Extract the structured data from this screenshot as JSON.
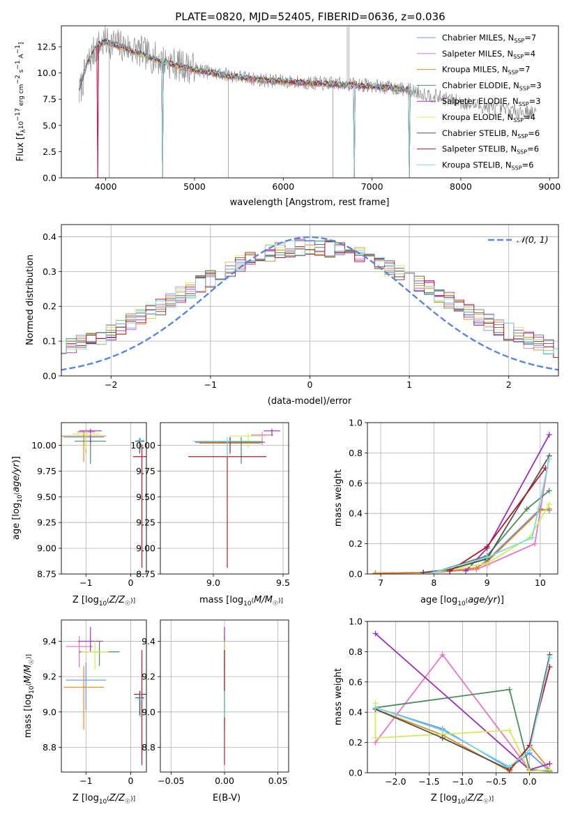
{
  "figure_title": "PLATE=0820, MJD=52405, FIBERID=0636, z=0.036",
  "models": [
    {
      "name": "Chabrier MILES",
      "nssp": "7",
      "color": "#6495ED"
    },
    {
      "name": "Salpeter MILES",
      "nssp": "4",
      "color": "#E377C2"
    },
    {
      "name": "Kroupa MILES",
      "nssp": "7",
      "color": "#E08A1E"
    },
    {
      "name": "Chabrier ELODIE",
      "nssp": "3",
      "color": "#4E8B5F"
    },
    {
      "name": "Salpeter ELODIE",
      "nssp": "3",
      "color": "#9A2FB5"
    },
    {
      "name": "Kroupa ELODIE",
      "nssp": "4",
      "color": "#D4EA5A"
    },
    {
      "name": "Chabrier STELIB",
      "nssp": "6",
      "color": "#505050"
    },
    {
      "name": "Salpeter STELIB",
      "nssp": "6",
      "color": "#B2182B"
    },
    {
      "name": "Kroupa STELIB",
      "nssp": "6",
      "color": "#7FD9DF"
    }
  ],
  "chart_data": [
    {
      "id": "spectrum",
      "type": "line",
      "title": "PLATE=0820, MJD=52405, FIBERID=0636, z=0.036",
      "xlabel": "wavelength [Angstrom, rest frame]",
      "ylabel": "Flux [f_λ 10^-17 erg cm^-2 s^-1 A^-1]",
      "xlim": [
        3500,
        9100
      ],
      "ylim": [
        0,
        14.5
      ],
      "xticks": [
        4000,
        5000,
        6000,
        7000,
        8000,
        9000
      ],
      "yticks": [
        0.0,
        2.5,
        5.0,
        7.5,
        10.0,
        12.5
      ],
      "data_series": {
        "name": "data",
        "color": "#888888",
        "x": [
          3700,
          3800,
          3900,
          4000,
          4100,
          4200,
          4300,
          4400,
          4500,
          4600,
          4800,
          5000,
          5200,
          5400,
          5600,
          5800,
          6000,
          6200,
          6400,
          6600,
          6800,
          7000,
          7200,
          7400,
          7600,
          7800,
          8000,
          8200,
          8400,
          8600,
          8800
        ],
        "y": [
          8.0,
          11.0,
          12.5,
          13.0,
          12.8,
          12.5,
          12.3,
          12.0,
          11.6,
          11.3,
          10.8,
          10.4,
          10.0,
          9.8,
          9.5,
          9.3,
          9.2,
          9.1,
          9.0,
          9.0,
          8.9,
          8.8,
          8.6,
          8.4,
          8.0,
          7.6,
          7.2,
          6.9,
          6.6,
          6.4,
          6.2
        ]
      },
      "model_continuum": {
        "x": [
          3700,
          3800,
          3900,
          4000,
          4100,
          4200,
          4300,
          4400,
          4500,
          4600,
          4800,
          5000,
          5200,
          5400,
          5600,
          5800,
          6000,
          6200,
          6400,
          6600,
          6800,
          7000,
          7200,
          7400
        ],
        "y": [
          8.5,
          11.2,
          12.6,
          13.0,
          12.7,
          12.4,
          12.1,
          11.8,
          11.5,
          11.2,
          10.7,
          10.3,
          10.0,
          9.7,
          9.5,
          9.3,
          9.2,
          9.1,
          9.0,
          8.9,
          8.8,
          8.7,
          8.6,
          8.4
        ]
      },
      "legend_position": "top-right"
    },
    {
      "id": "residuals",
      "type": "line",
      "xlabel": "(data-model)/error",
      "ylabel": "Normed distribution",
      "xlim": [
        -2.5,
        2.5
      ],
      "ylim": [
        0,
        0.435
      ],
      "xticks": [
        -2,
        -1,
        0,
        1,
        2
      ],
      "yticks": [
        0.0,
        0.1,
        0.2,
        0.3,
        0.4
      ],
      "bin_width": 0.1,
      "gaussian_label": "𝒩(0, 1)",
      "gaussian_color": "#5B85D9",
      "legend_position": "top-right",
      "grid": true
    },
    {
      "id": "age-vs-z",
      "type": "scatter",
      "xlabel": "Z [log10(Z/Z☉)]",
      "ylabel": "age  [log10(age/yr)]",
      "xlim": [
        -1.55,
        0.35
      ],
      "ylim": [
        8.75,
        10.22
      ],
      "xticks": [
        -1,
        0
      ],
      "yticks": [
        8.75,
        9.0,
        9.25,
        9.5,
        9.75,
        10.0
      ],
      "points": [
        {
          "x": -1.05,
          "y": 10.08,
          "xerr": 0.45,
          "yerr": [
            0.08,
            0.04
          ]
        },
        {
          "x": -1.0,
          "y": 10.13,
          "xerr": 0.2,
          "yerr": [
            0.2,
            0.03
          ]
        },
        {
          "x": -1.05,
          "y": 10.09,
          "xerr": 0.5,
          "yerr": [
            0.25,
            0.04
          ]
        },
        {
          "x": -0.9,
          "y": 10.04,
          "xerr": 0.35,
          "yerr": [
            0.22,
            0.03
          ]
        },
        {
          "x": -0.9,
          "y": 10.14,
          "xerr": 0.25,
          "yerr": [
            0.12,
            0.02
          ]
        },
        {
          "x": -1.0,
          "y": 10.11,
          "xerr": 0.3,
          "yerr": [
            0.15,
            0.03
          ]
        },
        {
          "x": 0.2,
          "y": 10.04,
          "xerr": 0.1,
          "yerr": [
            0.12,
            0.03
          ]
        },
        {
          "x": 0.25,
          "y": 9.89,
          "xerr": 0.2,
          "yerr": [
            1.08,
            0.12
          ]
        },
        {
          "x": 0.22,
          "y": 10.05,
          "xerr": 0.08,
          "yerr": [
            0.1,
            0.02
          ]
        }
      ]
    },
    {
      "id": "age-vs-mass",
      "type": "scatter",
      "xlabel": "mass [log10(M/M☉)]",
      "ylabel": "",
      "xlim": [
        8.62,
        9.54
      ],
      "ylim": [
        8.75,
        10.22
      ],
      "xticks": [
        9.0,
        9.5
      ],
      "yticks": [
        8.75,
        9.0,
        9.25,
        9.5,
        9.75,
        10.0
      ],
      "points": [
        {
          "x": 9.12,
          "y": 10.03,
          "xerr": 0.22,
          "yerr": [
            0.12,
            0.05
          ]
        },
        {
          "x": 9.35,
          "y": 10.1,
          "xerr": 0.08,
          "yerr": [
            0.1,
            0.03
          ]
        },
        {
          "x": 9.12,
          "y": 10.02,
          "xerr": 0.22,
          "yerr": [
            0.1,
            0.05
          ]
        },
        {
          "x": 9.2,
          "y": 10.04,
          "xerr": 0.15,
          "yerr": [
            0.22,
            0.04
          ]
        },
        {
          "x": 9.42,
          "y": 10.14,
          "xerr": 0.06,
          "yerr": [
            0.05,
            0.02
          ]
        },
        {
          "x": 9.25,
          "y": 10.09,
          "xerr": 0.13,
          "yerr": [
            0.12,
            0.03
          ]
        },
        {
          "x": 9.12,
          "y": 10.03,
          "xerr": 0.25,
          "yerr": [
            0.1,
            0.05
          ]
        },
        {
          "x": 9.1,
          "y": 9.89,
          "xerr": 0.28,
          "yerr": [
            1.08,
            0.12
          ]
        },
        {
          "x": 9.1,
          "y": 10.04,
          "xerr": 0.25,
          "yerr": [
            0.15,
            0.04
          ]
        }
      ]
    },
    {
      "id": "weight-vs-age",
      "type": "line",
      "xlabel": "age  [log10(age/yr)]",
      "ylabel": "mass weight",
      "xlim": [
        6.75,
        10.33
      ],
      "ylim": [
        0,
        1.0
      ],
      "xticks": [
        7,
        8,
        9,
        10
      ],
      "yticks": [
        0.0,
        0.2,
        0.4,
        0.6,
        0.8,
        1.0
      ],
      "series": [
        {
          "x": [
            6.9,
            7.8,
            8.3,
            8.8,
            9.0,
            10.0,
            10.17
          ],
          "y": [
            0.005,
            0.01,
            0.02,
            0.04,
            0.09,
            0.43,
            0.42
          ]
        },
        {
          "x": [
            6.9,
            8.0,
            8.8,
            9.0,
            9.9,
            10.17
          ],
          "y": [
            0.005,
            0.01,
            0.03,
            0.06,
            0.2,
            0.78
          ]
        },
        {
          "x": [
            6.9,
            7.8,
            8.3,
            8.8,
            9.0,
            10.0,
            10.17
          ],
          "y": [
            0.005,
            0.01,
            0.02,
            0.04,
            0.08,
            0.42,
            0.43
          ]
        },
        {
          "x": [
            8.0,
            9.0,
            9.75,
            10.17
          ],
          "y": [
            0.01,
            0.12,
            0.43,
            0.55
          ]
        },
        {
          "x": [
            8.6,
            9.0,
            10.17
          ],
          "y": [
            0.02,
            0.17,
            0.92
          ]
        },
        {
          "x": [
            8.0,
            9.0,
            9.8,
            10.17
          ],
          "y": [
            0.01,
            0.07,
            0.24,
            0.46
          ]
        },
        {
          "x": [
            7.8,
            8.3,
            9.0,
            10.17
          ],
          "y": [
            0.01,
            0.03,
            0.1,
            0.78
          ]
        },
        {
          "x": [
            8.3,
            9.0,
            10.1
          ],
          "y": [
            0.02,
            0.18,
            0.7
          ]
        },
        {
          "x": [
            8.0,
            9.0,
            9.85,
            10.17
          ],
          "y": [
            0.01,
            0.11,
            0.24,
            0.76
          ]
        }
      ]
    },
    {
      "id": "mass-vs-z",
      "type": "scatter",
      "xlabel": "Z [log10(Z/Z☉)]",
      "ylabel": "mass [log10(M/M☉)]",
      "xlim": [
        -1.55,
        0.35
      ],
      "ylim": [
        8.66,
        9.52
      ],
      "xticks": [
        -1,
        0
      ],
      "yticks": [
        8.8,
        9.0,
        9.2,
        9.4
      ],
      "points": [
        {
          "x": -1.0,
          "y": 9.18,
          "xerr": 0.45,
          "yerr": [
            0.17,
            0.1
          ]
        },
        {
          "x": -1.15,
          "y": 9.37,
          "xerr": 0.3,
          "yerr": [
            0.12,
            0.06
          ]
        },
        {
          "x": -1.05,
          "y": 9.14,
          "xerr": 0.45,
          "yerr": [
            0.24,
            0.12
          ]
        },
        {
          "x": -0.7,
          "y": 9.34,
          "xerr": 0.45,
          "yerr": [
            0.08,
            0.06
          ]
        },
        {
          "x": -0.9,
          "y": 9.4,
          "xerr": 0.28,
          "yerr": [
            0.06,
            0.08
          ]
        },
        {
          "x": -0.8,
          "y": 9.34,
          "xerr": 0.3,
          "yerr": [
            0.1,
            0.06
          ]
        },
        {
          "x": 0.2,
          "y": 9.08,
          "xerr": 0.1,
          "yerr": [
            0.1,
            0.04
          ]
        },
        {
          "x": 0.25,
          "y": 9.1,
          "xerr": 0.18,
          "yerr": [
            0.4,
            0.25
          ]
        },
        {
          "x": 0.22,
          "y": 9.07,
          "xerr": 0.08,
          "yerr": [
            0.1,
            0.05
          ]
        }
      ]
    },
    {
      "id": "mass-vs-ebv",
      "type": "scatter",
      "xlabel": "E(B-V)",
      "ylabel": "",
      "xlim": [
        -0.06,
        0.06
      ],
      "ylim": [
        8.66,
        9.52
      ],
      "xticks": [
        -0.05,
        0.0,
        0.05
      ],
      "yticks": [
        8.8,
        9.0,
        9.2,
        9.4
      ],
      "points": [
        {
          "x": 0.0,
          "y": 9.18,
          "yerr": [
            0.17,
            0.1
          ]
        },
        {
          "x": 0.0,
          "y": 9.37,
          "yerr": [
            0.12,
            0.06
          ]
        },
        {
          "x": 0.0,
          "y": 9.14,
          "yerr": [
            0.24,
            0.12
          ]
        },
        {
          "x": 0.0,
          "y": 9.34,
          "yerr": [
            0.08,
            0.06
          ]
        },
        {
          "x": 0.0,
          "y": 9.4,
          "yerr": [
            0.06,
            0.08
          ]
        },
        {
          "x": 0.0,
          "y": 9.34,
          "yerr": [
            0.1,
            0.06
          ]
        },
        {
          "x": 0.0,
          "y": 9.08,
          "yerr": [
            0.1,
            0.04
          ]
        },
        {
          "x": 0.0,
          "y": 9.1,
          "yerr": [
            0.4,
            0.25
          ]
        },
        {
          "x": 0.0,
          "y": 9.07,
          "yerr": [
            0.1,
            0.05
          ]
        }
      ]
    },
    {
      "id": "weight-vs-z",
      "type": "line",
      "xlabel": "Z [log10(Z/Z☉)]",
      "ylabel": "mass weight",
      "xlim": [
        -2.42,
        0.42
      ],
      "ylim": [
        0,
        1.0
      ],
      "xticks": [
        -2.0,
        -1.5,
        -1.0,
        -0.5,
        0.0
      ],
      "yticks": [
        0.0,
        0.2,
        0.4,
        0.6,
        0.8,
        1.0
      ],
      "series": [
        {
          "x": [
            -2.3,
            -1.3,
            -0.3,
            0.0,
            0.3
          ],
          "y": [
            0.43,
            0.29,
            0.03,
            0.13,
            0.01
          ]
        },
        {
          "x": [
            -2.3,
            -1.3,
            0.0,
            0.3
          ],
          "y": [
            0.2,
            0.78,
            0.02,
            0.01
          ]
        },
        {
          "x": [
            -2.3,
            -1.3,
            -0.3,
            0.0,
            0.3
          ],
          "y": [
            0.42,
            0.25,
            0.01,
            0.18,
            0.02
          ]
        },
        {
          "x": [
            -2.3,
            -0.3,
            0.0,
            0.3
          ],
          "y": [
            0.43,
            0.55,
            0.02,
            0.01
          ]
        },
        {
          "x": [
            -2.3,
            0.0,
            0.3
          ],
          "y": [
            0.92,
            0.02,
            0.06
          ]
        },
        {
          "x": [
            -2.3,
            -2.3,
            -0.3,
            0.0,
            0.3
          ],
          "y": [
            0.46,
            0.23,
            0.28,
            0.01,
            0.02
          ]
        },
        {
          "x": [
            -2.3,
            -1.3,
            -0.3,
            0.0,
            0.3
          ],
          "y": [
            0.42,
            0.23,
            0.02,
            0.18,
            0.78
          ]
        },
        {
          "x": [
            -0.3,
            0.0,
            0.3
          ],
          "y": [
            0.02,
            0.18,
            0.7
          ]
        },
        {
          "x": [
            -2.3,
            -1.3,
            -0.3,
            0.0,
            0.3
          ],
          "y": [
            0.43,
            0.28,
            0.04,
            0.15,
            0.76
          ]
        }
      ]
    }
  ]
}
